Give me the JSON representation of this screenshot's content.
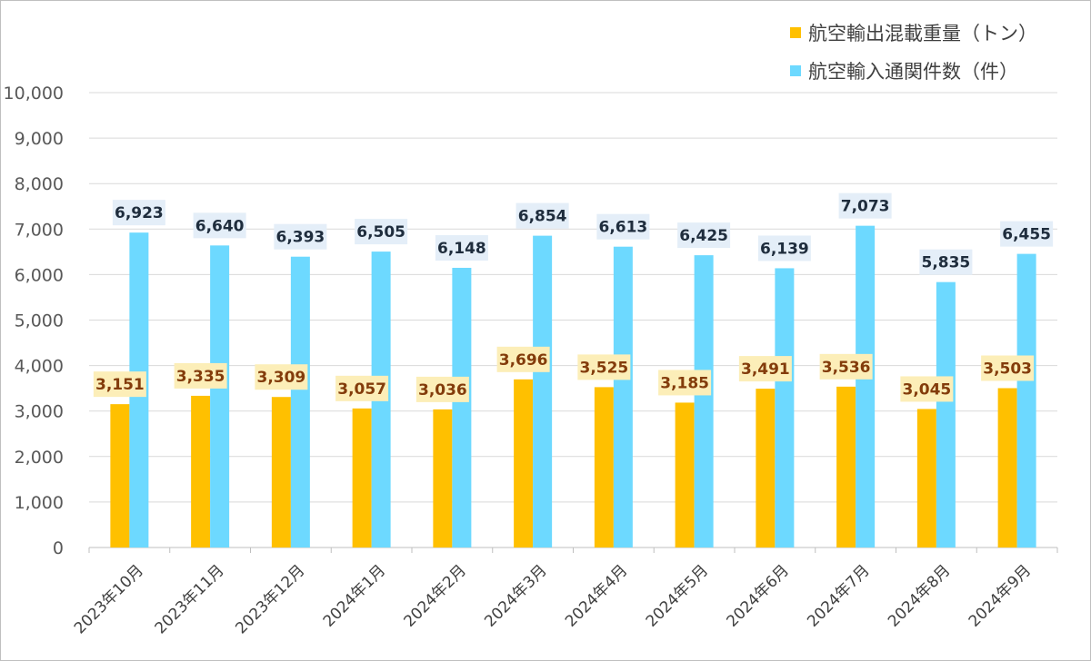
{
  "chart_data": {
    "type": "bar",
    "categories": [
      "2023年10月",
      "2023年11月",
      "2023年12月",
      "2024年1月",
      "2024年2月",
      "2024年3月",
      "2024年4月",
      "2024年5月",
      "2024年6月",
      "2024年7月",
      "2024年8月",
      "2024年9月"
    ],
    "series": [
      {
        "name": "航空輸出混載重量（トン）",
        "color": "#FFC000",
        "label_bg": "#FCEEB8",
        "label_color": "#833C0B",
        "values": [
          3151,
          3335,
          3309,
          3057,
          3036,
          3696,
          3525,
          3185,
          3491,
          3536,
          3045,
          3503
        ],
        "labels": [
          "3,151",
          "3,335",
          "3,309",
          "3,057",
          "3,036",
          "3,696",
          "3,525",
          "3,185",
          "3,491",
          "3,536",
          "3,045",
          "3,503"
        ]
      },
      {
        "name": "航空輸入通関件数（件）",
        "color": "#6DD9FF",
        "label_bg": "#E4EEF8",
        "label_color": "#1F2D3D",
        "values": [
          6923,
          6640,
          6393,
          6505,
          6148,
          6854,
          6613,
          6425,
          6139,
          7073,
          5835,
          6455
        ],
        "labels": [
          "6,923",
          "6,640",
          "6,393",
          "6,505",
          "6,148",
          "6,854",
          "6,613",
          "6,425",
          "6,139",
          "7,073",
          "5,835",
          "6,455"
        ]
      }
    ],
    "ylim": [
      0,
      10000
    ],
    "yticks": [
      0,
      1000,
      2000,
      3000,
      4000,
      5000,
      6000,
      7000,
      8000,
      9000,
      10000
    ],
    "ytick_labels": [
      "0",
      "1,000",
      "2,000",
      "3,000",
      "4,000",
      "5,000",
      "6,000",
      "7,000",
      "8,000",
      "9,000",
      "10,000"
    ],
    "grid": true,
    "legend_position": "top-right",
    "gridline_color": "#d9d9d9",
    "axis_color": "#bfbfbf"
  }
}
